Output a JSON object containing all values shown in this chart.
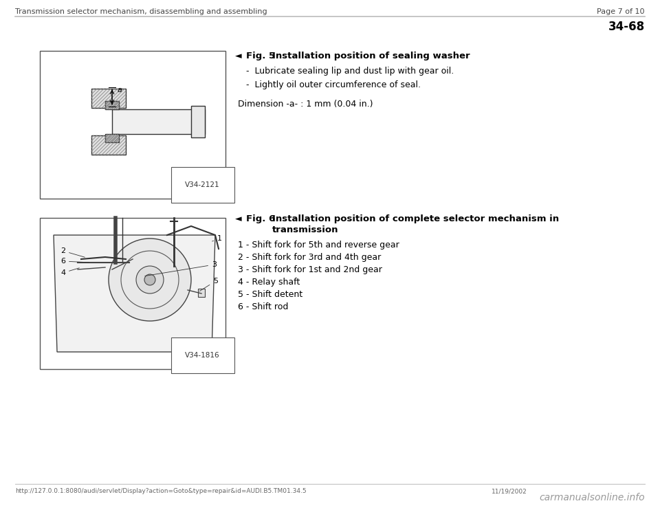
{
  "bg_color": "#ffffff",
  "header_text_left": "Transmission selector mechanism, disassembling and assembling",
  "header_text_right": "Page 7 of 10",
  "section_number": "34-68",
  "fig5_title": "Fig. 5",
  "fig5_title_desc": "Installation position of sealing washer",
  "fig5_bullets": [
    "Lubricate sealing lip and dust lip with gear oil.",
    "Lightly oil outer circumference of seal."
  ],
  "fig5_dimension": "Dimension -a- : 1 mm (0.04 in.)",
  "fig5_img_label": "V34-2121",
  "fig6_title": "Fig. 6",
  "fig6_title_desc_line1": "Installation position of complete selector mechanism in",
  "fig6_title_desc_line2": "transmission",
  "fig6_items": [
    "1 - Shift fork for 5th and reverse gear",
    "2 - Shift fork for 3rd and 4th gear",
    "3 - Shift fork for 1st and 2nd gear",
    "4 - Relay shaft",
    "5 - Shift detent",
    "6 - Shift rod"
  ],
  "fig6_img_label": "V34-1816",
  "footer_url": "http://127.0.0.1:8080/audi/servlet/Display?action=Goto&type=repair&id=AUDI.B5.TM01.34.5",
  "footer_date": "11/19/2002",
  "footer_brand": "carmanualsonline.info",
  "line_color": "#aaaaaa",
  "text_color": "#000000",
  "header_color": "#444444"
}
